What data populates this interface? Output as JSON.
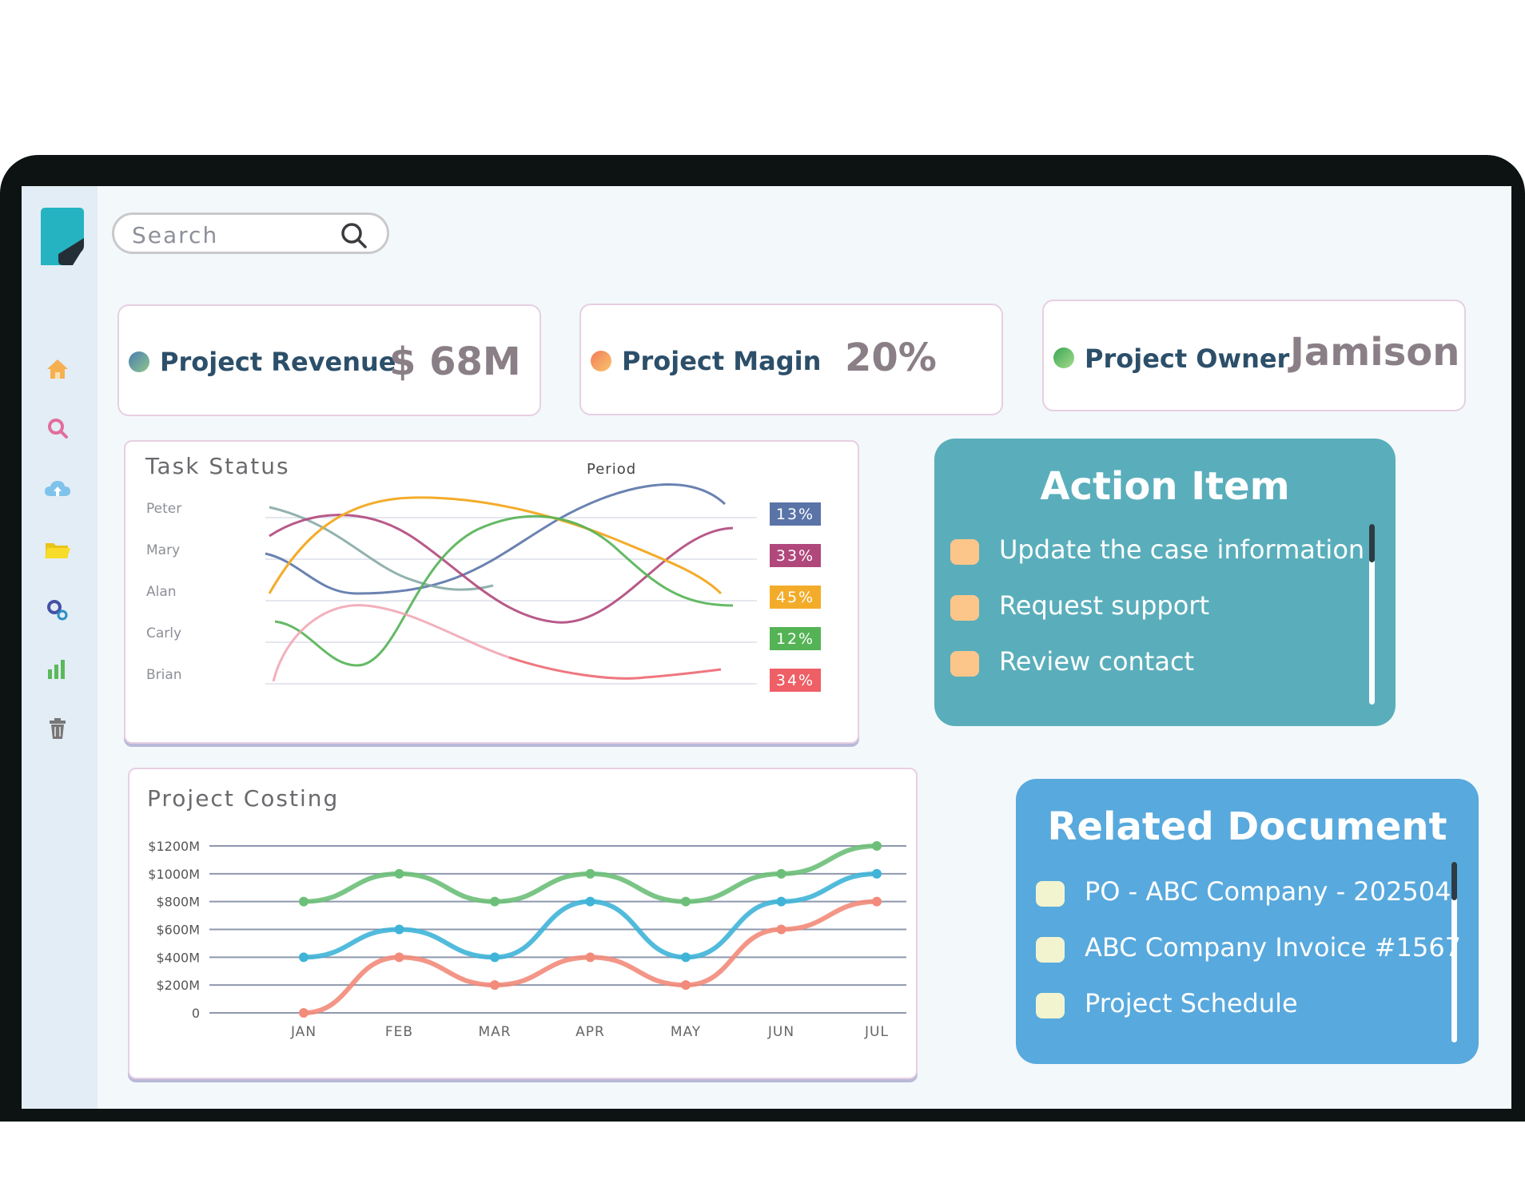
{
  "search": {
    "placeholder": "Search"
  },
  "sidebar": {
    "items": [
      {
        "icon": "home-icon",
        "color": "#f6b04f"
      },
      {
        "icon": "search-icon",
        "color": "#e16d9c"
      },
      {
        "icon": "cloud-upload-icon",
        "color": "#7fc2ec"
      },
      {
        "icon": "folder-icon",
        "color": "#f4d41e"
      },
      {
        "icon": "settings-icon",
        "color": "#4453a6"
      },
      {
        "icon": "bar-chart-icon",
        "color": "#5cb85c"
      },
      {
        "icon": "trash-icon",
        "color": "#777777"
      }
    ]
  },
  "kpis": [
    {
      "label": "Project Revenue",
      "value": "$ 68M",
      "dot_colors": [
        "#4b7cb3",
        "#8dc78a"
      ]
    },
    {
      "label": "Project Magin",
      "value": "20%",
      "dot_colors": [
        "#f27a5a",
        "#f8c66b"
      ]
    },
    {
      "label": "Project Owner",
      "value": "Jamison",
      "dot_colors": [
        "#3aa655",
        "#a6db8c"
      ]
    }
  ],
  "task_status": {
    "title": "Task Status",
    "period_label": "Period",
    "rows": [
      {
        "name": "Peter",
        "percent": "13%",
        "color": "#5a74a8"
      },
      {
        "name": "Mary",
        "percent": "33%",
        "color": "#b0487c"
      },
      {
        "name": "Alan",
        "percent": "45%",
        "color": "#f3ac2a"
      },
      {
        "name": "Carly",
        "percent": "12%",
        "color": "#54b355"
      },
      {
        "name": "Brian",
        "percent": "34%",
        "color": "#ee5f66"
      }
    ]
  },
  "action_item": {
    "title": "Action Item",
    "color": "#5aaebb",
    "items": [
      "Update the case information",
      "Request support",
      "Review contact"
    ]
  },
  "related_document": {
    "title": "Related Document",
    "color": "#58a9dd",
    "items": [
      "PO - ABC Company - 202504",
      "ABC Company Invoice #1567",
      "Project Schedule"
    ]
  },
  "chart_data": {
    "type": "line",
    "title": "Project Costing",
    "categories": [
      "JAN",
      "FEB",
      "MAR",
      "APR",
      "MAY",
      "JUN",
      "JUL"
    ],
    "y_ticks": [
      "0",
      "$200M",
      "$400M",
      "$600M",
      "$800M",
      "$1000M",
      "$1200M"
    ],
    "ylim": [
      0,
      1200
    ],
    "grid": true,
    "series": [
      {
        "values": [
          800,
          1000,
          800,
          1000,
          800,
          1000,
          1200
        ],
        "color": "#6cbf78"
      },
      {
        "values": [
          400,
          600,
          400,
          800,
          400,
          800,
          1000
        ],
        "color": "#3fb4d8"
      },
      {
        "values": [
          0,
          400,
          200,
          400,
          200,
          600,
          800
        ],
        "color": "#f28b7a"
      }
    ]
  }
}
